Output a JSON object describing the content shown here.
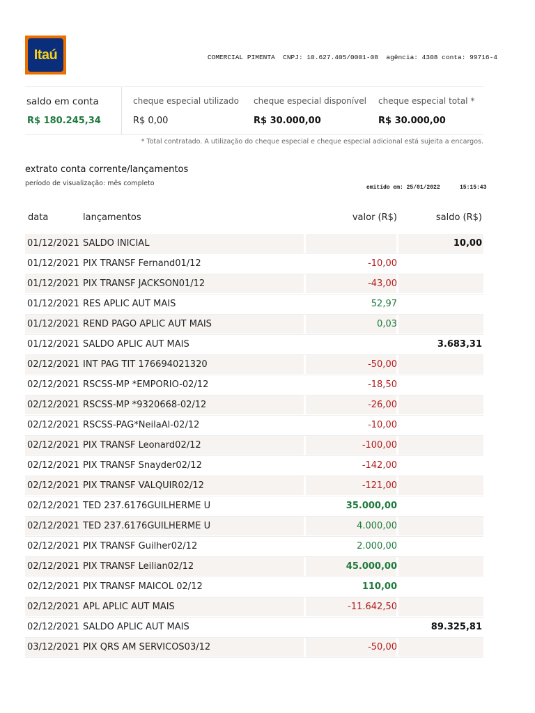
{
  "brand": {
    "logo_text": "Itaú",
    "colors": {
      "orange": "#ec7000",
      "navy": "#0b2e7c",
      "yellow": "#f7d117"
    }
  },
  "account_info": "COMERCIAL PIMENTA  CNPJ: 10.627.405/0001-08  agência: 4308 conta: 99716-4",
  "summary": {
    "saldo_label": "saldo em conta",
    "saldo_value": "R$ 180.245,34",
    "utilizado_label": "cheque especial utilizado",
    "utilizado_value": "R$ 0,00",
    "disponivel_label": "cheque especial disponível",
    "disponivel_value": "R$ 30.000,00",
    "total_label": "cheque especial total *",
    "total_value": "R$ 30.000,00"
  },
  "footnote": "* Total contratado. A utilização do cheque especial e cheque especial adicional está sujeita a encargos.",
  "statement": {
    "title": "extrato conta corrente/lançamentos",
    "period": "período de visualização: mês completo",
    "emitted": "emitido em: 25/01/2022",
    "emitted_time": "15:15:43"
  },
  "table": {
    "headers": {
      "date": "data",
      "desc": "lançamentos",
      "value": "valor (R$)",
      "balance": "saldo (R$)"
    },
    "rows": [
      {
        "date": "01/12/2021",
        "desc": "SALDO INICIAL",
        "value": "",
        "balance": "10,00"
      },
      {
        "date": "01/12/2021",
        "desc": "PIX TRANSF Fernand01/12",
        "value": "-10,00",
        "balance": ""
      },
      {
        "date": "01/12/2021",
        "desc": "PIX TRANSF JACKSON01/12",
        "value": "-43,00",
        "balance": ""
      },
      {
        "date": "01/12/2021",
        "desc": "RES APLIC AUT MAIS",
        "value": "52,97",
        "balance": ""
      },
      {
        "date": "01/12/2021",
        "desc": "REND PAGO APLIC AUT MAIS",
        "value": "0,03",
        "balance": ""
      },
      {
        "date": "01/12/2021",
        "desc": "SALDO APLIC AUT MAIS",
        "value": "",
        "balance": "3.683,31"
      },
      {
        "date": "02/12/2021",
        "desc": "INT PAG TIT 176694021320",
        "value": "-50,00",
        "balance": ""
      },
      {
        "date": "02/12/2021",
        "desc": "RSCSS-MP *EMPORIO-02/12",
        "value": "-18,50",
        "balance": ""
      },
      {
        "date": "02/12/2021",
        "desc": "RSCSS-MP *9320668-02/12",
        "value": "-26,00",
        "balance": ""
      },
      {
        "date": "02/12/2021",
        "desc": "RSCSS-PAG*NeilaAl-02/12",
        "value": "-10,00",
        "balance": ""
      },
      {
        "date": "02/12/2021",
        "desc": "PIX TRANSF Leonard02/12",
        "value": "-100,00",
        "balance": ""
      },
      {
        "date": "02/12/2021",
        "desc": "PIX TRANSF Snayder02/12",
        "value": "-142,00",
        "balance": ""
      },
      {
        "date": "02/12/2021",
        "desc": "PIX TRANSF VALQUIR02/12",
        "value": "-121,00",
        "balance": ""
      },
      {
        "date": "02/12/2021",
        "desc": "TED 237.6176GUILHERME U",
        "value": "35.000,00",
        "balance": ""
      },
      {
        "date": "02/12/2021",
        "desc": "TED 237.6176GUILHERME U",
        "value": "4.000,00",
        "balance": ""
      },
      {
        "date": "02/12/2021",
        "desc": "PIX TRANSF Guilher02/12",
        "value": "2.000,00",
        "balance": ""
      },
      {
        "date": "02/12/2021",
        "desc": "PIX TRANSF Leilian02/12",
        "value": "45.000,00",
        "balance": ""
      },
      {
        "date": "02/12/2021",
        "desc": "PIX TRANSF MAICOL 02/12",
        "value": "110,00",
        "balance": ""
      },
      {
        "date": "02/12/2021",
        "desc": "APL APLIC AUT MAIS",
        "value": "-11.642,50",
        "balance": ""
      },
      {
        "date": "02/12/2021",
        "desc": "SALDO APLIC AUT MAIS",
        "value": "",
        "balance": "89.325,81"
      },
      {
        "date": "03/12/2021",
        "desc": "PIX QRS AM SERVICOS03/12",
        "value": "-50,00",
        "balance": ""
      }
    ]
  }
}
